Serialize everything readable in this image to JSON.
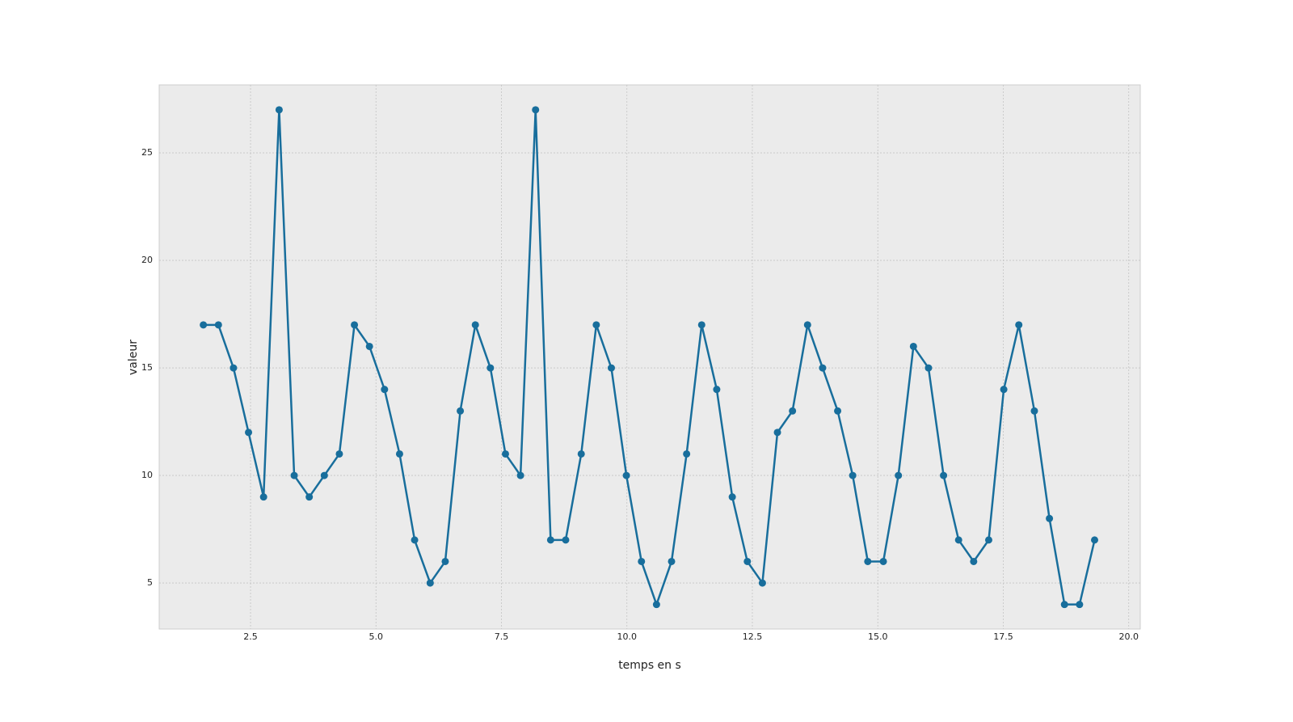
{
  "chart_data": {
    "type": "line",
    "xlabel": "temps en s",
    "ylabel": "valeur",
    "x": [
      1.56,
      1.86,
      2.16,
      2.46,
      2.76,
      3.07,
      3.37,
      3.67,
      3.97,
      4.27,
      4.57,
      4.87,
      5.17,
      5.47,
      5.77,
      6.08,
      6.38,
      6.68,
      6.98,
      7.28,
      7.58,
      7.88,
      8.18,
      8.48,
      8.78,
      9.09,
      9.39,
      9.69,
      9.99,
      10.29,
      10.59,
      10.89,
      11.19,
      11.49,
      11.79,
      12.1,
      12.4,
      12.7,
      13.0,
      13.3,
      13.6,
      13.9,
      14.2,
      14.5,
      14.8,
      15.11,
      15.41,
      15.71,
      16.01,
      16.31,
      16.61,
      16.91,
      17.21,
      17.51,
      17.81,
      18.12,
      18.42,
      18.72,
      19.02,
      19.32
    ],
    "series": [
      {
        "color": "#186e9c",
        "values": [
          17,
          17,
          15,
          12,
          9,
          27,
          10,
          9,
          10,
          11,
          17,
          16,
          14,
          11,
          7,
          5,
          6,
          13,
          17,
          15,
          11,
          10,
          27,
          7,
          7,
          11,
          17,
          15,
          10,
          6,
          4,
          6,
          11,
          17,
          14,
          9,
          6,
          5,
          12,
          13,
          17,
          15,
          13,
          10,
          6,
          6,
          10,
          16,
          15,
          10,
          7,
          6,
          7,
          14,
          17,
          13,
          8,
          4,
          4,
          7
        ]
      }
    ],
    "xlim": [
      0.68,
      20.23
    ],
    "ylim": [
      2.86,
      28.16
    ],
    "xticks": [
      2.5,
      {
        "value": 5.0,
        "label": "5.0"
      },
      7.5,
      {
        "value": 10.0,
        "label": "10.0"
      },
      12.5,
      {
        "value": 15.0,
        "label": "15.0"
      },
      17.5,
      {
        "value": 20.0,
        "label": "20.0"
      }
    ],
    "yticks": [
      5,
      10,
      15,
      20,
      25
    ],
    "grid": true
  }
}
